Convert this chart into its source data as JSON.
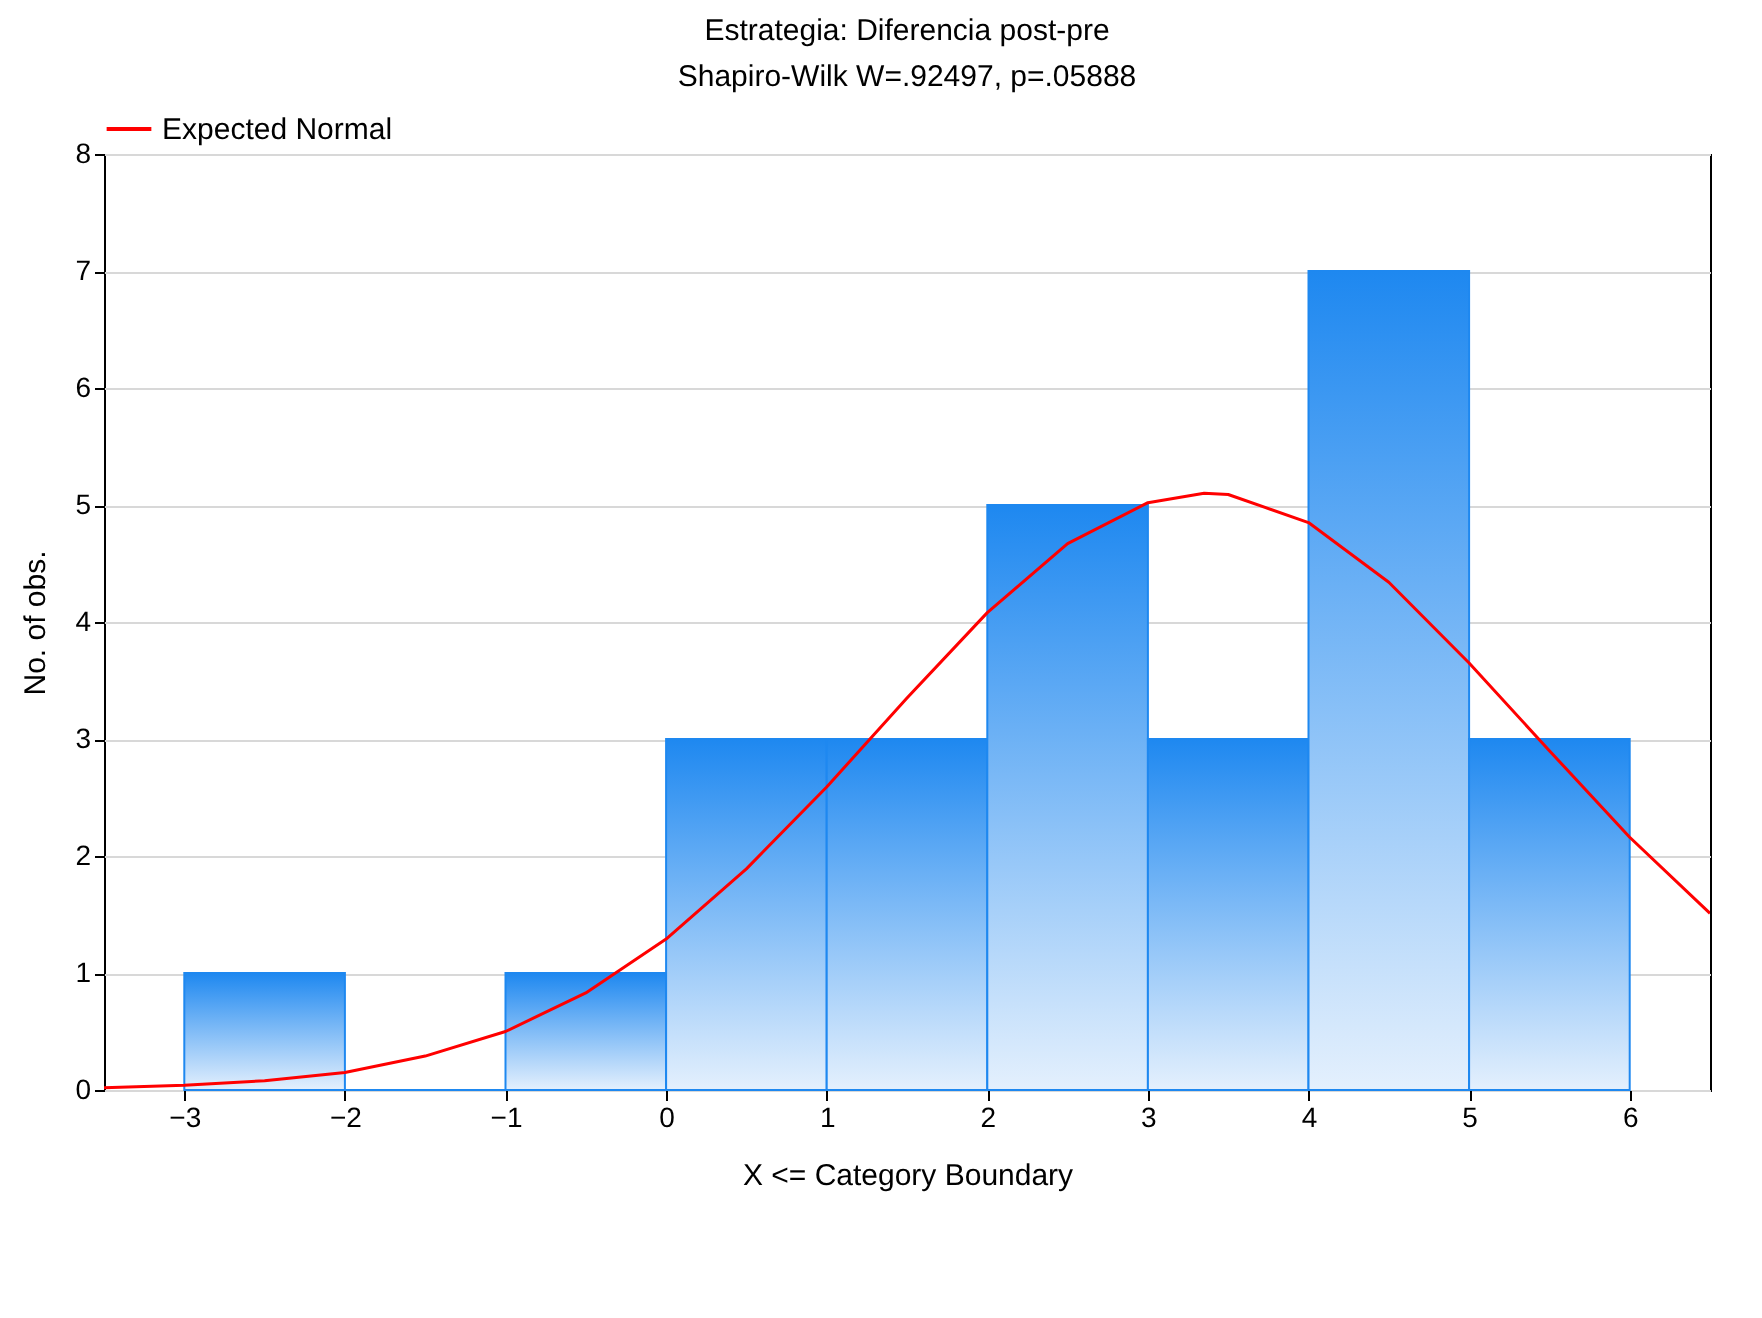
{
  "chart_data": {
    "type": "histogram",
    "title": "Estrategia: Diferencia post-pre",
    "subtitle": "Shapiro-Wilk W=.92497, p=.05888",
    "xlabel": "X <= Category Boundary",
    "ylabel": "No. of obs.",
    "bins": [
      -3,
      -2,
      -1,
      0,
      1,
      2,
      3,
      4,
      5,
      6
    ],
    "series": [
      {
        "color": "#1e88f0",
        "values": [
          1,
          0,
          1,
          3,
          3,
          5,
          3,
          7,
          3
        ]
      },
      {
        "type": "line",
        "name": "Expected Normal",
        "color": "#ff0000",
        "x": [
          -3.5,
          -3,
          -2.5,
          -2,
          -1.5,
          -1,
          -0.5,
          0,
          0.5,
          1,
          1.5,
          2,
          2.5,
          3,
          3.35,
          3.5,
          4,
          4.5,
          5,
          5.5,
          6,
          6.5
        ],
        "values": [
          0.02,
          0.04,
          0.08,
          0.15,
          0.29,
          0.5,
          0.83,
          1.29,
          1.89,
          2.59,
          3.35,
          4.08,
          4.67,
          5.02,
          5.1,
          5.09,
          4.85,
          4.34,
          3.65,
          2.9,
          2.16,
          1.51
        ]
      }
    ],
    "xlim": [
      -3.5,
      6.5
    ],
    "xticks": [
      -3,
      -2,
      -1,
      0,
      1,
      2,
      3,
      4,
      5,
      6
    ],
    "ylim": [
      0,
      8
    ],
    "yticks": [
      0,
      1,
      2,
      3,
      4,
      5,
      6,
      7,
      8
    ],
    "grid": "y",
    "legend": "top"
  }
}
